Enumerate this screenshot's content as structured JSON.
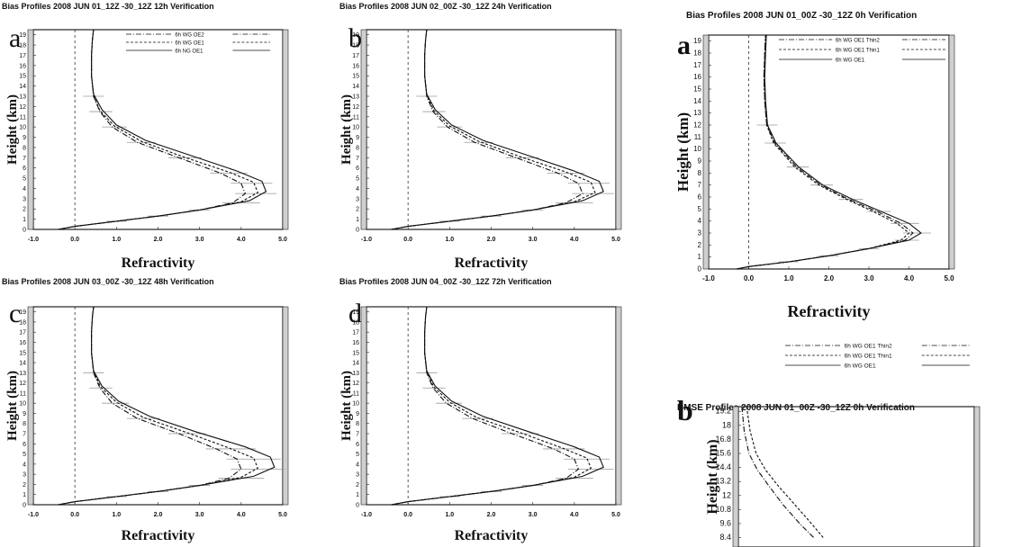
{
  "chart_data": [
    {
      "id": "a_left",
      "type": "line",
      "panel_label": "a",
      "title": "Bias Profiles 2008 JUN 01_12Z -30_12Z 12h Verification",
      "xlabel": "Refractivity",
      "ylabel": "Height (km)",
      "xlim": [
        -1.0,
        5.0
      ],
      "ylim": [
        0,
        19.5
      ],
      "x_ticks": [
        "-1.0",
        "0.0",
        "1.0",
        "2.0",
        "3.0",
        "4.0",
        "5.0"
      ],
      "y_ticks": [
        "0",
        "1",
        "2",
        "3",
        "4",
        "5",
        "6",
        "7",
        "8",
        "9",
        "10",
        "11",
        "12",
        "13",
        "14",
        "15",
        "16",
        "17",
        "18",
        "19"
      ],
      "legend": [
        "6h WG OE2",
        "6h WG OE1",
        "6h NG OE1"
      ],
      "series": [
        {
          "name": "6h WG OE2",
          "x": [
            -0.4,
            0.0,
            1.0,
            2.0,
            3.0,
            3.8,
            4.1,
            4.0,
            3.5,
            2.5,
            1.5,
            0.9,
            0.6,
            0.45,
            0.4,
            0.4,
            0.42,
            0.45
          ],
          "y": [
            0,
            0.3,
            0.8,
            1.3,
            1.9,
            2.6,
            3.5,
            4.5,
            5.5,
            7.0,
            8.5,
            10.0,
            11.5,
            13.0,
            15.0,
            17.0,
            18.5,
            19.5
          ]
        },
        {
          "name": "6h WG OE1",
          "x": [
            -0.4,
            0.0,
            1.0,
            2.0,
            3.0,
            4.0,
            4.4,
            4.3,
            3.7,
            2.6,
            1.6,
            0.95,
            0.6,
            0.45,
            0.4,
            0.4,
            0.42,
            0.45
          ],
          "y": [
            0,
            0.3,
            0.8,
            1.3,
            1.9,
            2.7,
            3.6,
            4.6,
            5.6,
            7.1,
            8.6,
            10.1,
            11.6,
            13.1,
            15.0,
            17.0,
            18.5,
            19.5
          ]
        },
        {
          "name": "6h NG OE1",
          "x": [
            -0.4,
            0.0,
            1.0,
            2.0,
            3.0,
            4.2,
            4.6,
            4.5,
            3.9,
            2.8,
            1.7,
            1.0,
            0.65,
            0.45,
            0.4,
            0.4,
            0.42,
            0.45
          ],
          "y": [
            0,
            0.3,
            0.8,
            1.3,
            1.9,
            2.8,
            3.7,
            4.7,
            5.7,
            7.2,
            8.7,
            10.2,
            11.7,
            13.2,
            15.0,
            17.0,
            18.5,
            19.5
          ]
        }
      ]
    },
    {
      "id": "b_left",
      "type": "line",
      "panel_label": "b",
      "title": "Bias Profiles 2008 JUN 02_00Z -30_12Z 24h Verification",
      "xlabel": "Refractivity",
      "ylabel": "Height (km)",
      "xlim": [
        -1.0,
        5.0
      ],
      "ylim": [
        0,
        19.5
      ],
      "x_ticks": [
        "-1.0",
        "0.0",
        "1.0",
        "2.0",
        "3.0",
        "4.0",
        "5.0"
      ],
      "y_ticks": [
        "0",
        "1",
        "2",
        "3",
        "4",
        "5",
        "6",
        "7",
        "8",
        "9",
        "10",
        "11",
        "12",
        "13",
        "14",
        "15",
        "16",
        "17",
        "18",
        "19"
      ],
      "legend": [],
      "series": [
        {
          "x": [
            -0.4,
            0.0,
            1.0,
            2.0,
            3.0,
            3.8,
            4.2,
            4.1,
            3.6,
            2.6,
            1.6,
            0.95,
            0.6,
            0.45,
            0.4,
            0.4,
            0.42,
            0.45
          ],
          "y": [
            0,
            0.3,
            0.8,
            1.3,
            1.9,
            2.6,
            3.5,
            4.5,
            5.5,
            7.0,
            8.5,
            10.0,
            11.5,
            13.0,
            15.0,
            17.0,
            18.5,
            19.5
          ]
        },
        {
          "x": [
            -0.4,
            0.0,
            1.0,
            2.0,
            3.0,
            4.0,
            4.5,
            4.4,
            3.8,
            2.7,
            1.7,
            1.0,
            0.62,
            0.45,
            0.4,
            0.4,
            0.42,
            0.45
          ],
          "y": [
            0,
            0.3,
            0.8,
            1.3,
            1.9,
            2.7,
            3.6,
            4.6,
            5.6,
            7.1,
            8.6,
            10.1,
            11.6,
            13.1,
            15.0,
            17.0,
            18.5,
            19.5
          ]
        },
        {
          "x": [
            -0.4,
            0.0,
            1.0,
            2.0,
            3.0,
            4.2,
            4.7,
            4.6,
            4.0,
            2.9,
            1.8,
            1.05,
            0.65,
            0.45,
            0.4,
            0.4,
            0.42,
            0.45
          ],
          "y": [
            0,
            0.3,
            0.8,
            1.3,
            1.9,
            2.8,
            3.7,
            4.7,
            5.7,
            7.2,
            8.7,
            10.2,
            11.7,
            13.2,
            15.0,
            17.0,
            18.5,
            19.5
          ]
        }
      ]
    },
    {
      "id": "c_left",
      "type": "line",
      "panel_label": "c",
      "title": "Bias Profiles 2008 JUN 03_00Z -30_12Z 48h Verification",
      "xlabel": "Refractivity",
      "ylabel": "Height (km)",
      "xlim": [
        -1.0,
        5.0
      ],
      "ylim": [
        0,
        19.5
      ],
      "x_ticks": [
        "-1.0",
        "0.0",
        "1.0",
        "2.0",
        "3.0",
        "4.0",
        "5.0"
      ],
      "y_ticks": [
        "0",
        "1",
        "2",
        "3",
        "4",
        "5",
        "6",
        "7",
        "8",
        "9",
        "10",
        "11",
        "12",
        "13",
        "14",
        "15",
        "16",
        "17",
        "18",
        "19"
      ],
      "legend": [],
      "series": [
        {
          "x": [
            -0.4,
            0.0,
            1.0,
            2.0,
            3.0,
            3.7,
            4.0,
            3.9,
            3.4,
            2.5,
            1.5,
            0.9,
            0.6,
            0.45,
            0.4,
            0.4,
            0.42,
            0.45
          ],
          "y": [
            0,
            0.3,
            0.8,
            1.3,
            1.9,
            2.6,
            3.5,
            4.5,
            5.5,
            7.0,
            8.5,
            10.0,
            11.5,
            13.0,
            15.0,
            17.0,
            18.5,
            19.5
          ]
        },
        {
          "x": [
            -0.4,
            0.0,
            1.0,
            2.0,
            3.0,
            4.0,
            4.4,
            4.3,
            3.7,
            2.7,
            1.65,
            1.0,
            0.62,
            0.45,
            0.4,
            0.4,
            0.42,
            0.45
          ],
          "y": [
            0,
            0.3,
            0.8,
            1.3,
            1.9,
            2.7,
            3.6,
            4.6,
            5.6,
            7.1,
            8.6,
            10.1,
            11.6,
            13.1,
            15.0,
            17.0,
            18.5,
            19.5
          ]
        },
        {
          "x": [
            -0.4,
            0.0,
            1.0,
            2.0,
            3.0,
            4.3,
            4.8,
            4.7,
            4.1,
            2.9,
            1.8,
            1.05,
            0.65,
            0.45,
            0.4,
            0.4,
            0.42,
            0.45
          ],
          "y": [
            0,
            0.3,
            0.8,
            1.3,
            1.9,
            2.8,
            3.7,
            4.7,
            5.7,
            7.2,
            8.7,
            10.2,
            11.7,
            13.2,
            15.0,
            17.0,
            18.5,
            19.5
          ]
        }
      ]
    },
    {
      "id": "d_left",
      "type": "line",
      "panel_label": "d",
      "title": "Bias Profiles 2008 JUN 04_00Z -30_12Z 72h Verification",
      "xlabel": "Refractivity",
      "ylabel": "Height (km)",
      "xlim": [
        -1.0,
        5.0
      ],
      "ylim": [
        0,
        19.5
      ],
      "x_ticks": [
        "-1.0",
        "0.0",
        "1.0",
        "2.0",
        "3.0",
        "4.0",
        "5.0"
      ],
      "y_ticks": [
        "0",
        "1",
        "2",
        "3",
        "4",
        "5",
        "6",
        "7",
        "8",
        "9",
        "10",
        "11",
        "12",
        "13",
        "14",
        "15",
        "16",
        "17",
        "18",
        "19"
      ],
      "legend": [],
      "series": [
        {
          "x": [
            -0.4,
            0.0,
            1.0,
            2.0,
            3.0,
            3.8,
            4.1,
            4.0,
            3.5,
            2.5,
            1.55,
            0.92,
            0.6,
            0.45,
            0.4,
            0.4,
            0.42,
            0.45
          ],
          "y": [
            0,
            0.3,
            0.8,
            1.3,
            1.9,
            2.6,
            3.5,
            4.5,
            5.5,
            7.0,
            8.5,
            10.0,
            11.5,
            13.0,
            15.0,
            17.0,
            18.5,
            19.5
          ]
        },
        {
          "x": [
            -0.4,
            0.0,
            1.0,
            2.0,
            3.0,
            4.0,
            4.4,
            4.3,
            3.7,
            2.7,
            1.65,
            1.0,
            0.62,
            0.45,
            0.4,
            0.4,
            0.42,
            0.45
          ],
          "y": [
            0,
            0.3,
            0.8,
            1.3,
            1.9,
            2.7,
            3.6,
            4.6,
            5.6,
            7.1,
            8.6,
            10.1,
            11.6,
            13.1,
            15.0,
            17.0,
            18.5,
            19.5
          ]
        },
        {
          "x": [
            -0.4,
            0.0,
            1.0,
            2.0,
            3.0,
            4.2,
            4.7,
            4.6,
            4.0,
            2.9,
            1.8,
            1.05,
            0.65,
            0.45,
            0.4,
            0.4,
            0.42,
            0.45
          ],
          "y": [
            0,
            0.3,
            0.8,
            1.3,
            1.9,
            2.8,
            3.7,
            4.7,
            5.7,
            7.2,
            8.7,
            10.2,
            11.7,
            13.2,
            15.0,
            17.0,
            18.5,
            19.5
          ]
        }
      ]
    },
    {
      "id": "a_right",
      "type": "line",
      "panel_label": "a",
      "title": "Bias Profiles 2008 JUN 01_00Z -30_12Z 0h Verification",
      "xlabel": "Refractivity",
      "ylabel": "Height (km)",
      "xlim": [
        -1.0,
        5.0
      ],
      "ylim": [
        0,
        19.5
      ],
      "x_ticks": [
        "-1.0",
        "0.0",
        "1.0",
        "2.0",
        "3.0",
        "4.0",
        "5.0"
      ],
      "y_ticks": [
        "0",
        "1",
        "2",
        "3",
        "4",
        "5",
        "6",
        "7",
        "8",
        "9",
        "10",
        "11",
        "12",
        "13",
        "14",
        "15",
        "16",
        "17",
        "18",
        "19"
      ],
      "legend": [
        "6h WG OE1 Thin2",
        "6h WG OE1 Thin1",
        "6h WG OE1"
      ],
      "series": [
        {
          "name": "6h WG OE1 Thin2",
          "x": [
            -0.3,
            0.0,
            1.0,
            2.0,
            3.0,
            3.9,
            4.1,
            3.8,
            3.2,
            2.5,
            1.8,
            1.2,
            0.65,
            0.45,
            0.4,
            0.38,
            0.4,
            0.42
          ],
          "y": [
            0,
            0.2,
            0.6,
            1.1,
            1.7,
            2.4,
            3.0,
            3.8,
            4.8,
            5.8,
            7.0,
            8.5,
            10.5,
            12.0,
            14.0,
            16.0,
            18.0,
            19.5
          ]
        },
        {
          "name": "6h WG OE1 Thin1",
          "x": [
            -0.3,
            0.0,
            1.0,
            2.0,
            3.0,
            3.8,
            4.0,
            3.7,
            3.1,
            2.45,
            1.75,
            1.15,
            0.62,
            0.45,
            0.4,
            0.38,
            0.4,
            0.42
          ],
          "y": [
            0,
            0.2,
            0.6,
            1.1,
            1.7,
            2.4,
            3.0,
            3.8,
            4.8,
            5.8,
            7.0,
            8.5,
            10.5,
            12.0,
            14.0,
            16.0,
            18.0,
            19.5
          ]
        },
        {
          "name": "6h WG OE1",
          "x": [
            -0.3,
            0.0,
            1.0,
            2.0,
            3.0,
            4.0,
            4.3,
            4.0,
            3.3,
            2.6,
            1.85,
            1.25,
            0.68,
            0.47,
            0.42,
            0.4,
            0.42,
            0.44
          ],
          "y": [
            0,
            0.2,
            0.6,
            1.1,
            1.7,
            2.4,
            3.0,
            3.8,
            4.8,
            5.8,
            7.0,
            8.5,
            10.5,
            12.0,
            14.0,
            16.0,
            18.0,
            19.5
          ]
        }
      ]
    },
    {
      "id": "b_right",
      "type": "line",
      "panel_label": "b",
      "title": "RMSE Profiles 2008 JUN 01_00Z -30_12Z 0h Verification",
      "xlabel": "",
      "ylabel": "Height (km)",
      "xlim": [
        0,
        10
      ],
      "ylim": [
        7.6,
        19.6
      ],
      "y_ticks": [
        "8.4",
        "9.6",
        "10.8",
        "12",
        "13.2",
        "14.4",
        "15.6",
        "16.8",
        "18",
        "19.2"
      ],
      "legend_above": [
        "6h WG OE1 Thin2",
        "6h WG OE1 Thin1",
        "6h WG OE1"
      ],
      "series": [
        {
          "x": [
            0.15,
            0.25,
            0.45,
            0.8,
            1.3,
            1.9,
            2.6,
            3.2
          ],
          "y": [
            19.6,
            17.5,
            15.6,
            14.2,
            12.8,
            11.2,
            9.6,
            8.4
          ]
        },
        {
          "x": [
            0.35,
            0.5,
            0.75,
            1.15,
            1.7,
            2.4,
            3.1,
            3.6
          ],
          "y": [
            19.6,
            17.5,
            15.6,
            14.2,
            12.8,
            11.2,
            9.6,
            8.4
          ]
        }
      ]
    }
  ],
  "colors": {
    "line": "#111111",
    "shading": "#9a9a9a",
    "frame": "#222222"
  }
}
